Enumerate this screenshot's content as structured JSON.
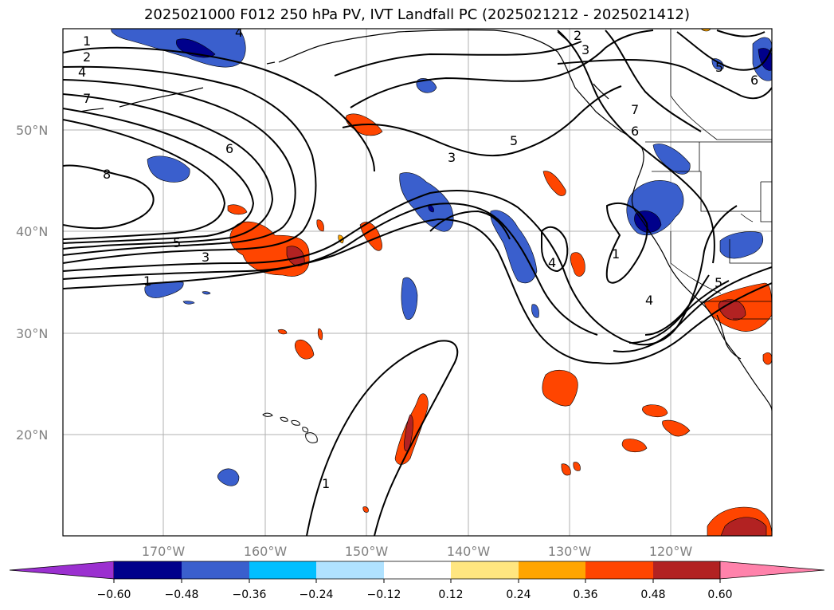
{
  "title": "2025021000 F012 250 hPa PV, IVT Landfall PC (2025021212 - 2025021412)",
  "map": {
    "lon_range": [
      180,
      110
    ],
    "lat_range": [
      10,
      60
    ],
    "lat_ticks": [
      {
        "value": 20,
        "label": "20°N"
      },
      {
        "value": 30,
        "label": "30°N"
      },
      {
        "value": 40,
        "label": "40°N"
      },
      {
        "value": 50,
        "label": "50°N"
      }
    ],
    "lon_ticks": [
      {
        "value": 170,
        "label": "170°W"
      },
      {
        "value": 160,
        "label": "160°W"
      },
      {
        "value": 150,
        "label": "150°W"
      },
      {
        "value": 140,
        "label": "140°W"
      },
      {
        "value": 130,
        "label": "130°W"
      },
      {
        "value": 120,
        "label": "120°W"
      }
    ],
    "grid": true,
    "contour_labels": [
      "1",
      "2",
      "4",
      "7",
      "8",
      "6",
      "5",
      "3",
      "1",
      "4",
      "5",
      "3",
      "2",
      "3",
      "7",
      "6",
      "5",
      "6",
      "4",
      "1",
      "4",
      "5",
      "1"
    ]
  },
  "colorbar": {
    "tick_labels": [
      "−0.60",
      "−0.48",
      "−0.36",
      "−0.24",
      "−0.12",
      "0.12",
      "0.24",
      "0.36",
      "0.48",
      "0.60"
    ],
    "colors": [
      "#9b30d0",
      "#00008b",
      "#3a5fcd",
      "#00bfff",
      "#b0e2ff",
      "#ffffff",
      "#ffe680",
      "#ffa500",
      "#ff4500",
      "#b22222",
      "#ff82ab"
    ]
  }
}
